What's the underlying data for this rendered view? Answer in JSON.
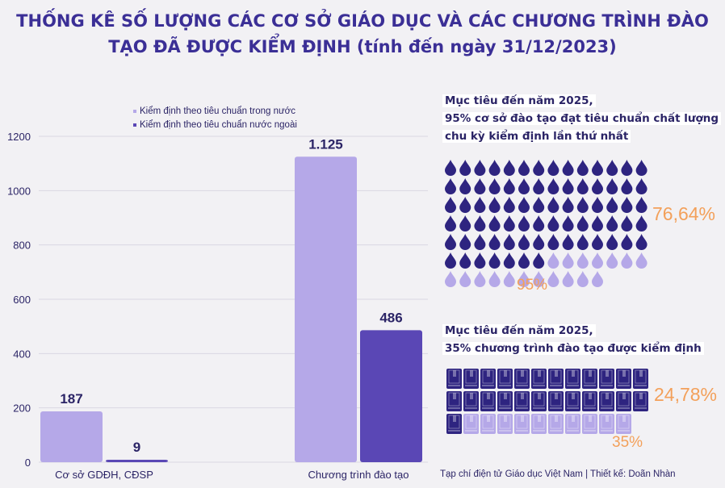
{
  "title": {
    "line1": "THỐNG KÊ SỐ LƯỢNG CÁC CƠ SỞ GIÁO DỤC VÀ CÁC CHƯƠNG TRÌNH ĐÀO",
    "line2_bold": "TẠO ĐÃ ĐƯỢC KIỂM ĐỊNH",
    "line2_rest": " (tính đến ngày 31/12/2023)"
  },
  "chart_data": {
    "type": "bar",
    "categories": [
      "Cơ sở GDĐH, CĐSP",
      "Chương trình đào tạo"
    ],
    "series": [
      {
        "name": "Kiểm định theo tiêu chuẩn trong nước",
        "values": [
          187,
          1125
        ],
        "labels": [
          "187",
          "1.125"
        ],
        "color": "#b5a8e8"
      },
      {
        "name": "Kiểm định theo tiêu chuẩn nước ngoài",
        "values": [
          9,
          486
        ],
        "labels": [
          "9",
          "486"
        ],
        "color": "#5a47b5"
      }
    ],
    "yticks": [
      0,
      200,
      400,
      600,
      800,
      1000,
      1200
    ],
    "ylim": [
      0,
      1200
    ],
    "legend": "top-center"
  },
  "targets": [
    {
      "line1": "Mục tiêu đến năm 2025,",
      "line2": "95% cơ sở đào tạo đạt tiêu chuẩn chất lượng",
      "line3": "chu kỳ kiểm định lần thứ nhất",
      "icon": "drop-icon",
      "achieved_pct": "76,64%",
      "achieved_value": 76.64,
      "target_pct": "95%",
      "target_value": 95,
      "dark_color": "#2e2480",
      "light_color": "#b5a8e8"
    },
    {
      "line1": "Mục tiêu đến năm 2025,",
      "line2": "35% chương trình đào tạo được kiểm định",
      "icon": "book-icon",
      "achieved_pct": "24,78%",
      "achieved_value": 24.78,
      "target_pct": "35%",
      "target_value": 35,
      "dark_color": "#2e2480",
      "light_color": "#b5a8e8"
    }
  ],
  "credit": "Tạp chí điện tử Giáo dục Việt Nam | Thiết kế: Doãn Nhàn"
}
